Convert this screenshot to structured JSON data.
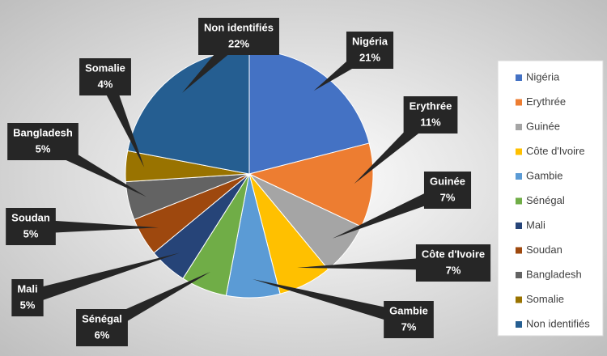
{
  "chart_data": {
    "type": "pie",
    "categories": [
      "Nigéria",
      "Erythrée",
      "Guinée",
      "Côte d'Ivoire",
      "Gambie",
      "Sénégal",
      "Mali",
      "Soudan",
      "Bangladesh",
      "Somalie",
      "Non identifiés"
    ],
    "values": [
      21,
      11,
      7,
      7,
      7,
      6,
      5,
      5,
      5,
      4,
      22
    ],
    "value_labels": [
      "21%",
      "11%",
      "7%",
      "7%",
      "7%",
      "6%",
      "5%",
      "5%",
      "5%",
      "4%",
      "22%"
    ],
    "colors": [
      "#4472c4",
      "#ed7d31",
      "#a5a5a5",
      "#ffc000",
      "#5b9bd5",
      "#70ad47",
      "#264478",
      "#9e480e",
      "#636363",
      "#997300",
      "#255e91"
    ],
    "legend": "right"
  }
}
